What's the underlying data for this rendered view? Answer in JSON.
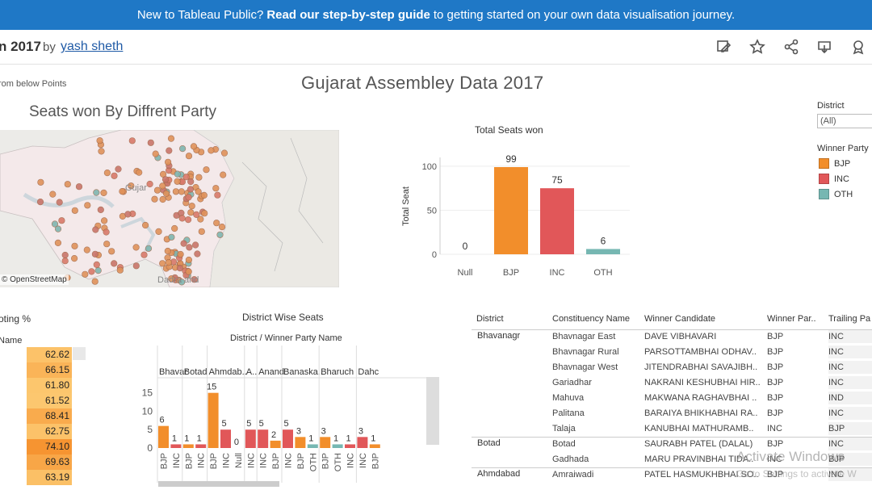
{
  "banner": {
    "prefix": "New to Tableau Public?",
    "link": "Read our step-by-step guide",
    "suffix": "to getting started on your own data visualisation journey."
  },
  "header": {
    "workbook_title": "n 2017",
    "by": "by",
    "author": "yash sheth",
    "icons": [
      "edit-icon",
      "star-icon",
      "share-icon",
      "download-icon",
      "badge-icon"
    ]
  },
  "dashboard": {
    "title": "Gujarat Assembley Data 2017",
    "note": "rom below Points"
  },
  "map": {
    "title": "Seats won By Diffrent Party",
    "credit": "© OpenStreetMap",
    "labels": {
      "gujarat": "Gujar",
      "daman": "Dadra and"
    }
  },
  "colors": {
    "BJP": "#f28e2b",
    "INC": "#e15759",
    "OTH": "#76b7b2",
    "null": "#aaaaaa"
  },
  "filter": {
    "label": "District",
    "value": "(All)"
  },
  "legend": {
    "title": "Winner Party",
    "items": [
      {
        "name": "BJP",
        "color": "#f28e2b"
      },
      {
        "name": "INC",
        "color": "#e15759"
      },
      {
        "name": "OTH",
        "color": "#76b7b2"
      }
    ]
  },
  "voting": {
    "title": "oting %",
    "name_header": "Name",
    "values": [
      "62.62",
      "66.15",
      "61.80",
      "61.52",
      "68.41",
      "62.75",
      "74.10",
      "69.63",
      "63.19"
    ]
  },
  "district_wise": {
    "title": "District Wise Seats",
    "subtitle": "District / Winner Party Name"
  },
  "chart_data": [
    {
      "type": "bar",
      "title": "Total Seats won",
      "ylabel": "Total Seat",
      "categories": [
        "Null",
        "BJP",
        "INC",
        "OTH"
      ],
      "values": [
        0,
        99,
        75,
        6
      ],
      "ylim": [
        0,
        110
      ],
      "yticks": [
        0,
        50,
        100
      ]
    },
    {
      "type": "bar",
      "title": "District Wise Seats",
      "xlabel": "District / Winner Party Name",
      "districts": [
        "Bhavar",
        "Botad",
        "Ahmdab..",
        "A..",
        "Anand",
        "Banaska..",
        "Bharuch",
        "Dahc"
      ],
      "bars": [
        {
          "district": "Bhavar",
          "party": "BJP",
          "value": 6
        },
        {
          "district": "Bhavar",
          "party": "INC",
          "value": 1
        },
        {
          "district": "Botad",
          "party": "BJP",
          "value": 1
        },
        {
          "district": "Botad",
          "party": "INC",
          "value": 1
        },
        {
          "district": "Ahmdab..",
          "party": "BJP",
          "value": 15
        },
        {
          "district": "Ahmdab..",
          "party": "INC",
          "value": 5
        },
        {
          "district": "Ahmdab..",
          "party": "Null",
          "value": 0
        },
        {
          "district": "A..",
          "party": "INC",
          "value": 5
        },
        {
          "district": "Anand",
          "party": "INC",
          "value": 5
        },
        {
          "district": "Anand",
          "party": "BJP",
          "value": 2
        },
        {
          "district": "Banaska..",
          "party": "INC",
          "value": 5
        },
        {
          "district": "Banaska..",
          "party": "BJP",
          "value": 3
        },
        {
          "district": "Banaska..",
          "party": "OTH",
          "value": 1
        },
        {
          "district": "Bharuch",
          "party": "BJP",
          "value": 3
        },
        {
          "district": "Bharuch",
          "party": "OTH",
          "value": 1
        },
        {
          "district": "Bharuch",
          "party": "INC",
          "value": 1
        },
        {
          "district": "Dahc",
          "party": "INC",
          "value": 3
        },
        {
          "district": "Dahc",
          "party": "BJP",
          "value": 1
        }
      ],
      "ylim": [
        0,
        18
      ],
      "yticks": [
        0,
        5,
        10,
        15
      ]
    }
  ],
  "table": {
    "headers": [
      "District",
      "Constituency Name",
      "Winner Candidate",
      "Winner Par..",
      "Trailing Pa"
    ],
    "groups": [
      {
        "district": "Bhavanagr",
        "rows": [
          [
            "Bhavnagar East",
            "DAVE VIBHAVARI",
            "BJP",
            "INC"
          ],
          [
            "Bhavnagar Rural",
            "PARSOTTAMBHAI ODHAV..",
            "BJP",
            "INC"
          ],
          [
            "Bhavnagar West",
            "JITENDRABHAI SAVAJIBH..",
            "BJP",
            "INC"
          ],
          [
            "Gariadhar",
            "NAKRANI KESHUBHAI HIR..",
            "BJP",
            "INC"
          ],
          [
            "Mahuva",
            "MAKWANA RAGHAVBHAI ..",
            "BJP",
            "IND"
          ],
          [
            "Palitana",
            "BARAIYA BHIKHABHAI RA..",
            "BJP",
            "INC"
          ],
          [
            "Talaja",
            "KANUBHAI MATHURAMB..",
            "INC",
            "BJP"
          ]
        ]
      },
      {
        "district": "Botad",
        "rows": [
          [
            "Botad",
            "SAURABH PATEL (DALAL)",
            "BJP",
            "INC"
          ],
          [
            "Gadhada",
            "MARU PRAVINBHAI TIDA..",
            "INC",
            "BJP"
          ]
        ]
      },
      {
        "district": "Ahmdabad",
        "rows": [
          [
            "Amraiwadi",
            "PATEL HASMUKHBHAI SO..",
            "BJP",
            "INC"
          ]
        ]
      }
    ]
  },
  "watermark": {
    "line1": "Activate Windows",
    "line2": "Go to Settings to activate W"
  }
}
